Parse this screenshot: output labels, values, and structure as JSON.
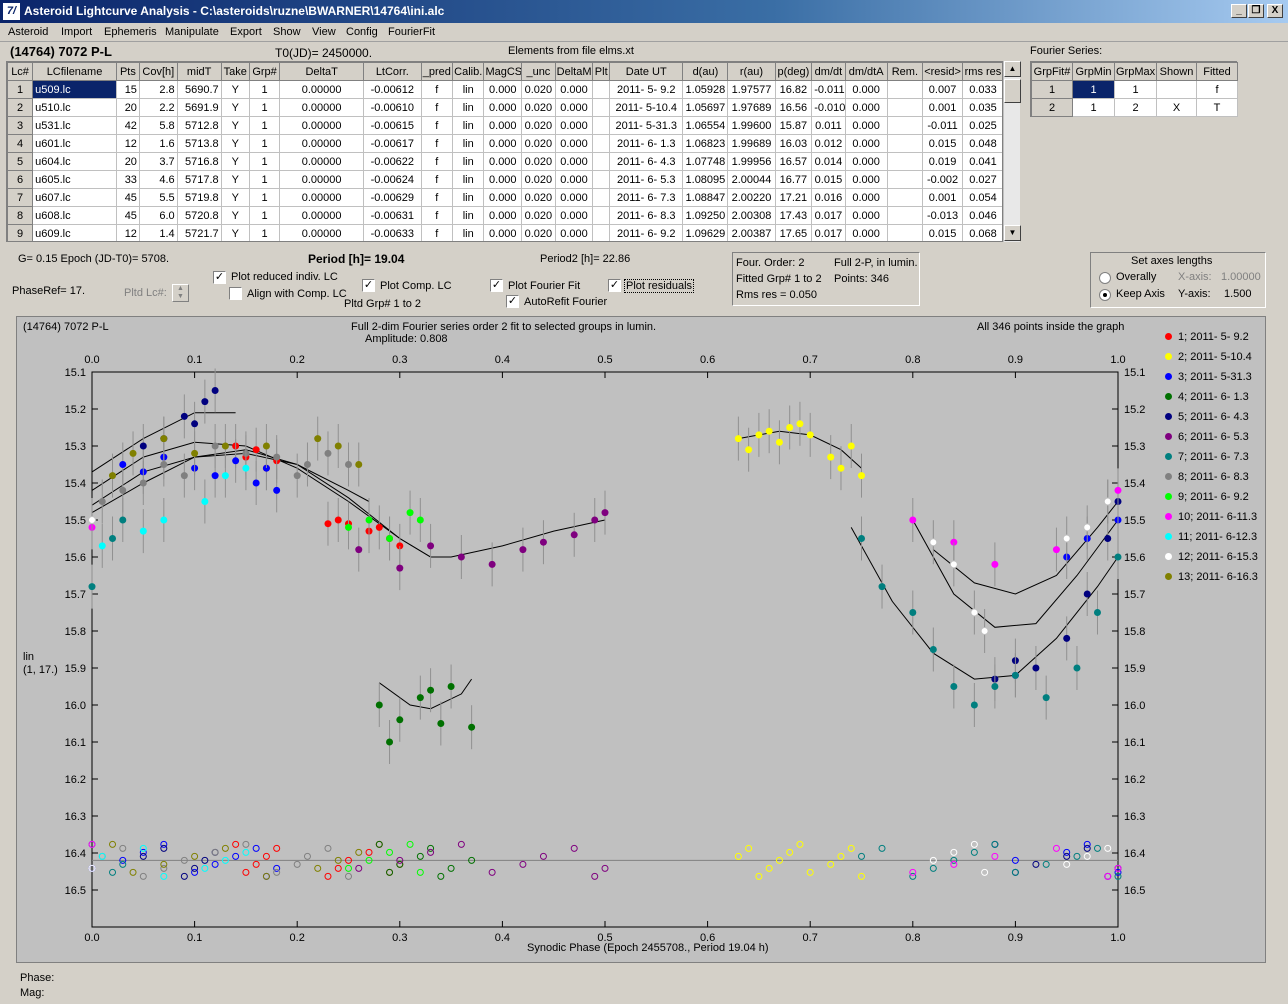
{
  "window": {
    "title": "Asteroid Lightcurve Analysis - C:\\asteroids\\ruzne\\BWARNER\\14764\\ini.alc",
    "icon": "app-icon",
    "buttons": [
      "_",
      "❐",
      "X"
    ]
  },
  "menu": [
    "Asteroid",
    "Import",
    "Ephemeris",
    "Manipulate",
    "Export",
    "Show",
    "View",
    "Config",
    "FourierFit"
  ],
  "header": {
    "object": "(14764) 7072 P-L",
    "t0": "T0(JD)= 2450000.",
    "elements": "Elements from file elms.xt",
    "fourier_label": "Fourier Series:"
  },
  "lc_table": {
    "columns": [
      "Lc#",
      "LCfilename",
      "Pts",
      "Cov[h]",
      "midT",
      "Take",
      "Grp#",
      "DeltaT",
      "LtCorr.",
      "_pred",
      "Calib.",
      "MagCS",
      "_unc",
      "DeltaM",
      "Plt",
      "Date UT",
      "d(au)",
      "r(au)",
      "p(deg)",
      "dm/dt",
      "dm/dtA",
      "Rem.",
      "<resid>",
      "rms res"
    ],
    "rows": [
      [
        "1",
        "u509.lc",
        "15",
        "2.8",
        "5690.7",
        "Y",
        "1",
        "0.00000",
        "-0.00612",
        "f",
        "lin",
        "0.000",
        "0.020",
        "0.000",
        "",
        "2011- 5- 9.2",
        "1.05928",
        "1.97577",
        "16.82",
        "-0.011",
        "0.000",
        "",
        "0.007",
        "0.033"
      ],
      [
        "2",
        "u510.lc",
        "20",
        "2.2",
        "5691.9",
        "Y",
        "1",
        "0.00000",
        "-0.00610",
        "f",
        "lin",
        "0.000",
        "0.020",
        "0.000",
        "",
        "2011- 5-10.4",
        "1.05697",
        "1.97689",
        "16.56",
        "-0.010",
        "0.000",
        "",
        "0.001",
        "0.035"
      ],
      [
        "3",
        "u531.lc",
        "42",
        "5.8",
        "5712.8",
        "Y",
        "1",
        "0.00000",
        "-0.00615",
        "f",
        "lin",
        "0.000",
        "0.020",
        "0.000",
        "",
        "2011- 5-31.3",
        "1.06554",
        "1.99600",
        "15.87",
        "0.011",
        "0.000",
        "",
        "-0.011",
        "0.025"
      ],
      [
        "4",
        "u601.lc",
        "12",
        "1.6",
        "5713.8",
        "Y",
        "1",
        "0.00000",
        "-0.00617",
        "f",
        "lin",
        "0.000",
        "0.020",
        "0.000",
        "",
        "2011- 6- 1.3",
        "1.06823",
        "1.99689",
        "16.03",
        "0.012",
        "0.000",
        "",
        "0.015",
        "0.048"
      ],
      [
        "5",
        "u604.lc",
        "20",
        "3.7",
        "5716.8",
        "Y",
        "1",
        "0.00000",
        "-0.00622",
        "f",
        "lin",
        "0.000",
        "0.020",
        "0.000",
        "",
        "2011- 6- 4.3",
        "1.07748",
        "1.99956",
        "16.57",
        "0.014",
        "0.000",
        "",
        "0.019",
        "0.041"
      ],
      [
        "6",
        "u605.lc",
        "33",
        "4.6",
        "5717.8",
        "Y",
        "1",
        "0.00000",
        "-0.00624",
        "f",
        "lin",
        "0.000",
        "0.020",
        "0.000",
        "",
        "2011- 6- 5.3",
        "1.08095",
        "2.00044",
        "16.77",
        "0.015",
        "0.000",
        "",
        "-0.002",
        "0.027"
      ],
      [
        "7",
        "u607.lc",
        "45",
        "5.5",
        "5719.8",
        "Y",
        "1",
        "0.00000",
        "-0.00629",
        "f",
        "lin",
        "0.000",
        "0.020",
        "0.000",
        "",
        "2011- 6- 7.3",
        "1.08847",
        "2.00220",
        "17.21",
        "0.016",
        "0.000",
        "",
        "0.001",
        "0.054"
      ],
      [
        "8",
        "u608.lc",
        "45",
        "6.0",
        "5720.8",
        "Y",
        "1",
        "0.00000",
        "-0.00631",
        "f",
        "lin",
        "0.000",
        "0.020",
        "0.000",
        "",
        "2011- 6- 8.3",
        "1.09250",
        "2.00308",
        "17.43",
        "0.017",
        "0.000",
        "",
        "-0.013",
        "0.046"
      ],
      [
        "9",
        "u609.lc",
        "12",
        "1.4",
        "5721.7",
        "Y",
        "1",
        "0.00000",
        "-0.00633",
        "f",
        "lin",
        "0.000",
        "0.020",
        "0.000",
        "",
        "2011- 6- 9.2",
        "1.09629",
        "2.00387",
        "17.65",
        "0.017",
        "0.000",
        "",
        "0.015",
        "0.068"
      ]
    ]
  },
  "fourier_table": {
    "columns": [
      "GrpFit#",
      "GrpMin",
      "GrpMax",
      "Shown",
      "Fitted"
    ],
    "rows": [
      [
        "1",
        "1",
        "1",
        "",
        "f"
      ],
      [
        "2",
        "1",
        "2",
        "X",
        "T"
      ]
    ]
  },
  "controls": {
    "g_epoch": "G= 0.15    Epoch (JD-T0)= 5708.",
    "phaseref": "PhaseRef= 17.",
    "pltd_lc": "Pltd Lc#:",
    "period": "Period [h]= 19.04",
    "period2": "Period2 [h]= 22.86",
    "plot_reduced": "Plot reduced indiv. LC",
    "align_comp": "Align with Comp. LC",
    "plot_comp": "Plot Comp. LC",
    "pltd_grp": "Pltd Grp#  1   to   2",
    "plot_fourier": "Plot Fourier Fit",
    "autorefit": "AutoRefit Fourier",
    "plot_residuals": "Plot residuals",
    "four_order": "Four. Order:  2",
    "full2p": "Full 2-P, in lumin.",
    "fitted_grp": "Fitted Grp# 1 to 2",
    "points": "Points: 346",
    "rms": "Rms res    = 0.050",
    "axes_title": "Set axes lengths",
    "overally": "Overally",
    "keep_axis": "Keep Axis",
    "xaxis_label": "X-axis:",
    "xaxis_val": "1.00000",
    "yaxis_label": "Y-axis:",
    "yaxis_val": "1.500"
  },
  "plot": {
    "top_left": "(14764) 7072 P-L",
    "top_center": "Full 2-dim Fourier series order 2 fit to selected groups in lumin.",
    "amplitude": "Amplitude: 0.808",
    "top_right": "All 346 points inside the graph",
    "xlabel": "Synodic Phase (Epoch 2455708., Period 19.04 h)",
    "ylabel1": "lin",
    "ylabel2": "(1, 17.)"
  },
  "status": {
    "phase": "Phase:",
    "mag": "Mag:"
  },
  "chart_data": {
    "type": "scatter",
    "title": "Full 2-dim Fourier series order 2 fit to selected groups in lumin.",
    "xlabel": "Synodic Phase (Epoch 2455708., Period 19.04 h)",
    "ylabel": "lin",
    "xlim": [
      0,
      1.0
    ],
    "ylim": [
      16.6,
      15.1
    ],
    "xticks": [
      "0.0",
      "0.1",
      "0.2",
      "0.3",
      "0.4",
      "0.5",
      "0.6",
      "0.7",
      "0.8",
      "0.9",
      "1.0"
    ],
    "yticks": [
      "15.1",
      "15.2",
      "15.3",
      "15.4",
      "15.5",
      "15.6",
      "15.7",
      "15.8",
      "15.9",
      "16.0",
      "16.1",
      "16.2",
      "16.3",
      "16.4",
      "16.5"
    ],
    "legend_position": "right",
    "residual_baseline": 16.42,
    "series": [
      {
        "name": "1; 2011- 5- 9.2",
        "color": "#ff0000",
        "x": [
          0.14,
          0.15,
          0.16,
          0.17,
          0.18,
          0.23,
          0.24,
          0.25,
          0.27,
          0.28,
          0.29,
          0.3
        ],
        "y": [
          15.3,
          15.33,
          15.31,
          15.36,
          15.34,
          15.51,
          15.5,
          15.51,
          15.53,
          15.52,
          15.55,
          15.57
        ]
      },
      {
        "name": "2; 2011- 5-10.4",
        "color": "#ffff00",
        "x": [
          0.63,
          0.64,
          0.65,
          0.66,
          0.67,
          0.68,
          0.69,
          0.7,
          0.72,
          0.73,
          0.74,
          0.75
        ],
        "y": [
          15.28,
          15.31,
          15.27,
          15.26,
          15.29,
          15.25,
          15.24,
          15.27,
          15.33,
          15.36,
          15.3,
          15.38
        ]
      },
      {
        "name": "3; 2011- 5-31.3",
        "color": "#0000ff",
        "x": [
          0.0,
          0.03,
          0.05,
          0.07,
          0.1,
          0.12,
          0.14,
          0.16,
          0.17,
          0.18,
          0.9,
          0.95,
          0.97,
          1.0
        ],
        "y": [
          15.5,
          15.35,
          15.37,
          15.33,
          15.36,
          15.38,
          15.34,
          15.4,
          15.36,
          15.42,
          15.92,
          15.6,
          15.55,
          15.5
        ]
      },
      {
        "name": "4; 2011- 6- 1.3",
        "color": "#007000",
        "x": [
          0.28,
          0.29,
          0.3,
          0.32,
          0.33,
          0.34,
          0.35,
          0.37
        ],
        "y": [
          16.0,
          16.1,
          16.04,
          15.98,
          15.96,
          16.05,
          15.95,
          16.06
        ]
      },
      {
        "name": "5; 2011- 6- 4.3",
        "color": "#00007f",
        "x": [
          0.05,
          0.07,
          0.09,
          0.1,
          0.11,
          0.12,
          0.88,
          0.9,
          0.92,
          0.95,
          0.97,
          0.99,
          1.0
        ],
        "y": [
          15.3,
          15.28,
          15.22,
          15.24,
          15.18,
          15.15,
          15.93,
          15.88,
          15.9,
          15.82,
          15.7,
          15.55,
          15.45
        ]
      },
      {
        "name": "6; 2011- 6- 5.3",
        "color": "#7f007f",
        "x": [
          0.26,
          0.3,
          0.33,
          0.36,
          0.39,
          0.42,
          0.44,
          0.47,
          0.49,
          0.5
        ],
        "y": [
          15.58,
          15.63,
          15.57,
          15.6,
          15.62,
          15.58,
          15.56,
          15.54,
          15.5,
          15.48
        ]
      },
      {
        "name": "7; 2011- 6- 7.3",
        "color": "#007f7f",
        "x": [
          0.0,
          0.02,
          0.03,
          0.75,
          0.77,
          0.8,
          0.82,
          0.84,
          0.86,
          0.88,
          0.9,
          0.93,
          0.96,
          0.98,
          1.0
        ],
        "y": [
          15.68,
          15.55,
          15.5,
          15.55,
          15.68,
          15.75,
          15.85,
          15.95,
          16.0,
          15.95,
          15.92,
          15.98,
          15.9,
          15.75,
          15.6
        ]
      },
      {
        "name": "8; 2011- 6- 8.3",
        "color": "#808080",
        "x": [
          0.01,
          0.03,
          0.05,
          0.07,
          0.09,
          0.12,
          0.15,
          0.18,
          0.2,
          0.21,
          0.23,
          0.25
        ],
        "y": [
          15.45,
          15.42,
          15.4,
          15.35,
          15.38,
          15.3,
          15.32,
          15.33,
          15.38,
          15.35,
          15.32,
          15.35
        ]
      },
      {
        "name": "9; 2011- 6- 9.2",
        "color": "#00ff00",
        "x": [
          0.25,
          0.27,
          0.29,
          0.31,
          0.32
        ],
        "y": [
          15.52,
          15.5,
          15.55,
          15.48,
          15.5
        ]
      },
      {
        "name": "10; 2011- 6-11.3",
        "color": "#ff00ff",
        "x": [
          0.0,
          0.8,
          0.84,
          0.88,
          0.94,
          0.99,
          1.0
        ],
        "y": [
          15.52,
          15.5,
          15.56,
          15.62,
          15.58,
          15.45,
          15.42
        ]
      },
      {
        "name": "11; 2011- 6-12.3",
        "color": "#00ffff",
        "x": [
          0.01,
          0.05,
          0.07,
          0.11,
          0.13,
          0.15
        ],
        "y": [
          15.57,
          15.53,
          15.5,
          15.45,
          15.38,
          15.36
        ]
      },
      {
        "name": "12; 2011- 6-15.3",
        "color": "#ffffff",
        "x": [
          0.0,
          0.82,
          0.84,
          0.86,
          0.87,
          0.95,
          0.97,
          0.99
        ],
        "y": [
          15.5,
          15.56,
          15.62,
          15.75,
          15.8,
          15.55,
          15.52,
          15.45
        ]
      },
      {
        "name": "13; 2011- 6-16.3",
        "color": "#808000",
        "x": [
          0.02,
          0.04,
          0.07,
          0.1,
          0.13,
          0.17,
          0.22,
          0.24,
          0.26
        ],
        "y": [
          15.38,
          15.32,
          15.28,
          15.32,
          15.3,
          15.3,
          15.28,
          15.3,
          15.35
        ]
      }
    ],
    "fit_curves": [
      {
        "x": [
          0.0,
          0.05,
          0.1,
          0.15,
          0.2,
          0.25,
          0.3,
          0.33,
          0.35,
          0.4,
          0.45,
          0.5
        ],
        "y": [
          15.46,
          15.37,
          15.33,
          15.32,
          15.35,
          15.44,
          15.55,
          15.6,
          15.6,
          15.57,
          15.53,
          15.5
        ]
      },
      {
        "x": [
          0.0,
          0.05,
          0.1,
          0.15,
          0.2,
          0.25,
          0.3,
          0.33
        ],
        "y": [
          15.42,
          15.33,
          15.29,
          15.3,
          15.36,
          15.45,
          15.55,
          15.6
        ]
      },
      {
        "x": [
          0.0,
          0.05,
          0.1,
          0.15,
          0.2,
          0.25,
          0.27
        ],
        "y": [
          15.48,
          15.4,
          15.33,
          15.31,
          15.35,
          15.42,
          15.45
        ]
      },
      {
        "x": [
          0.0,
          0.05,
          0.1,
          0.14
        ],
        "y": [
          15.37,
          15.28,
          15.21,
          15.21
        ]
      },
      {
        "x": [
          0.63,
          0.67,
          0.7,
          0.73,
          0.75
        ],
        "y": [
          15.28,
          15.26,
          15.27,
          15.31,
          15.36
        ]
      },
      {
        "x": [
          0.28,
          0.31,
          0.33,
          0.36,
          0.37
        ],
        "y": [
          15.94,
          16.0,
          16.01,
          15.97,
          15.93
        ]
      },
      {
        "x": [
          0.74,
          0.78,
          0.82,
          0.86,
          0.9,
          0.94,
          0.98,
          1.0
        ],
        "y": [
          15.52,
          15.72,
          15.86,
          15.93,
          15.92,
          15.82,
          15.68,
          15.6
        ]
      },
      {
        "x": [
          0.8,
          0.84,
          0.88,
          0.92,
          0.96,
          1.0
        ],
        "y": [
          15.5,
          15.7,
          15.79,
          15.78,
          15.65,
          15.5
        ]
      },
      {
        "x": [
          0.82,
          0.86,
          0.9,
          0.94,
          0.98,
          1.0
        ],
        "y": [
          15.58,
          15.67,
          15.7,
          15.65,
          15.52,
          15.45
        ]
      }
    ]
  },
  "residuals": {
    "description_omitted": true
  }
}
